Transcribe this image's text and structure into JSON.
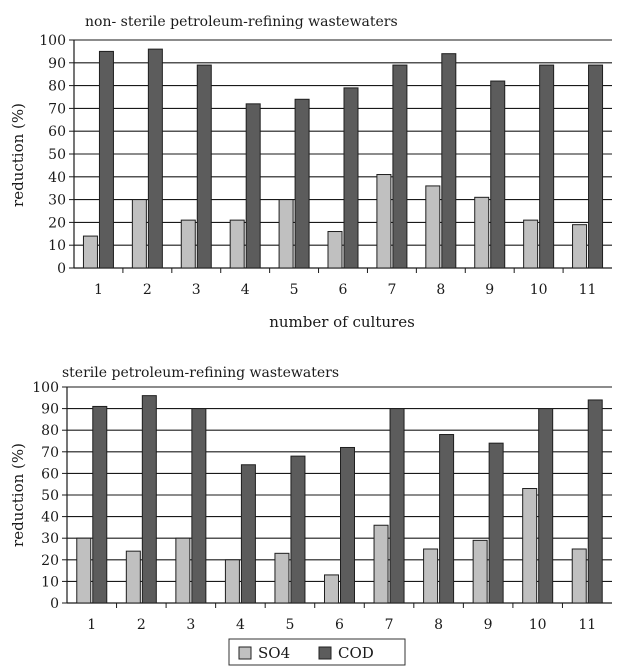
{
  "chart_data": [
    {
      "type": "bar",
      "title": "non- sterile petroleum-refining wastewaters",
      "xlabel": "number of cultures",
      "ylabel": "reduction (%)",
      "ylim": [
        0,
        100
      ],
      "yticks": [
        0,
        10,
        20,
        30,
        40,
        50,
        60,
        70,
        80,
        90,
        100
      ],
      "grid": "horizontal",
      "categories": [
        "1",
        "2",
        "3",
        "4",
        "5",
        "6",
        "7",
        "8",
        "9",
        "10",
        "11"
      ],
      "series": [
        {
          "name": "SO4",
          "color": "#c0c0c0",
          "values": [
            14,
            30,
            21,
            21,
            30,
            16,
            41,
            36,
            31,
            21,
            19
          ]
        },
        {
          "name": "COD",
          "color": "#5c5c5c",
          "values": [
            95,
            96,
            89,
            72,
            74,
            79,
            89,
            94,
            82,
            89,
            89
          ]
        }
      ]
    },
    {
      "type": "bar",
      "title": "sterile petroleum-refining wastewaters",
      "xlabel": "",
      "ylabel": "reduction (%)",
      "ylim": [
        0,
        100
      ],
      "yticks": [
        0,
        10,
        20,
        30,
        40,
        50,
        60,
        70,
        80,
        90,
        100
      ],
      "grid": "horizontal",
      "categories": [
        "1",
        "2",
        "3",
        "4",
        "5",
        "6",
        "7",
        "8",
        "9",
        "10",
        "11"
      ],
      "series": [
        {
          "name": "SO4",
          "color": "#c0c0c0",
          "values": [
            30,
            24,
            30,
            20,
            23,
            13,
            36,
            25,
            29,
            53,
            25
          ]
        },
        {
          "name": "COD",
          "color": "#5c5c5c",
          "values": [
            91,
            96,
            90,
            64,
            68,
            72,
            90,
            78,
            74,
            90,
            94
          ]
        }
      ]
    }
  ],
  "legend": {
    "placement": "bottom",
    "items": [
      {
        "label": "SO4",
        "color": "#c0c0c0"
      },
      {
        "label": "COD",
        "color": "#5c5c5c"
      }
    ]
  }
}
